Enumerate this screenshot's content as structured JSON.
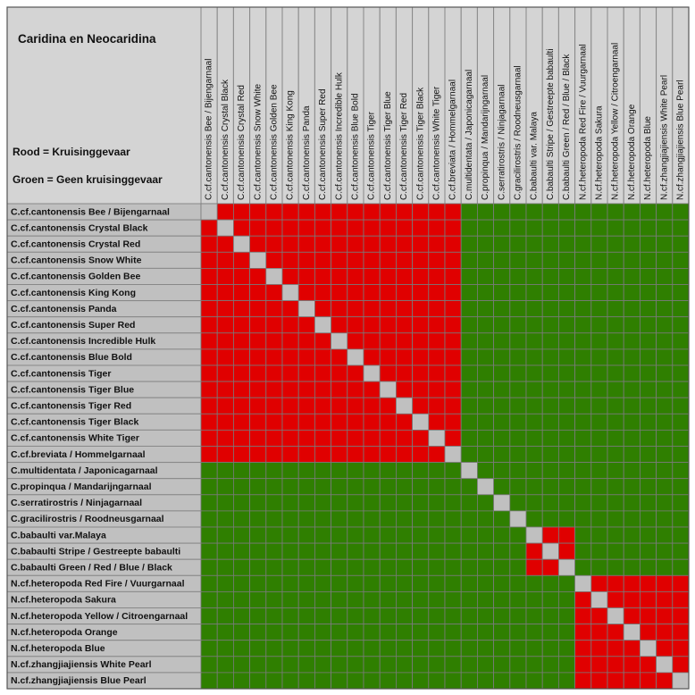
{
  "title": "Caridina en Neocaridina",
  "legend": [
    {
      "label": "Rood = Kruisinggevaar",
      "color": "#e00000"
    },
    {
      "label": "Groen = Geen kruisinggevaar",
      "color": "#2f7f00"
    }
  ],
  "self_color": "#c0c0c0",
  "columns": [
    "C.cf.cantonensis Bee / Bijengarnaal",
    "C.cf.cantonensis Crystal Black",
    "C.cf.cantonensis Crystal Red",
    "C.cf.cantonensis Snow White",
    "C.cf.cantonensis Golden Bee",
    "C.cf.cantonensis King Kong",
    "C.cf.cantonensis Panda",
    "C.cf.cantonensis Super Red",
    "C.cf.cantonensis Incredible Hulk",
    "C.cf.cantonensis Blue Bold",
    "C.cf.cantonensis Tiger",
    "C.cf.cantonensis Tiger Blue",
    "C.cf.cantonensis Tiger Red",
    "C.cf.cantonensis Tiger Black",
    "C.cf.cantonensis White Tiger",
    "C.cf.breviata / Hommelgarnaal",
    "C.multidentata / Japonicagarnaal",
    "C.propinqua / Mandarijngarnaal",
    "C.serratirostris / Ninjagarnaal",
    "C.gracilirostris / Roodneusgarnaal",
    "C.babaulti var. Malaya",
    "C.babaulti Stripe / Gestreepte babaulti",
    "C.babaulti Green / Red / Blue / Black",
    "N.cf.heteropoda Red Fire / Vuurgarnaal",
    "N.cf.heteropoda Sakura",
    "N.cf.heteropoda Yellow / Citroengarnaal",
    "N.cf.heteropoda Orange",
    "N.cf.heteropoda Blue",
    "N.cf.zhangjiajiensis White Pearl",
    "N.cf.zhangjiajiensis Blue Pearl"
  ],
  "rows": [
    "C.cf.cantonensis Bee / Bijengarnaal",
    "C.cf.cantonensis Crystal Black",
    "C.cf.cantonensis Crystal Red",
    "C.cf.cantonensis Snow White",
    "C.cf.cantonensis Golden Bee",
    "C.cf.cantonensis King Kong",
    "C.cf.cantonensis Panda",
    "C.cf.cantonensis Super Red",
    "C.cf.cantonensis Incredible Hulk",
    "C.cf.cantonensis Blue Bold",
    "C.cf.cantonensis Tiger",
    "C.cf.cantonensis Tiger  Blue",
    "C.cf.cantonensis Tiger Red",
    "C.cf.cantonensis Tiger Black",
    "C.cf.cantonensis White Tiger",
    "C.cf.breviata / Hommelgarnaal",
    "C.multidentata / Japonicagarnaal",
    "C.propinqua / Mandarijngarnaal",
    "C.serratirostris / Ninjagarnaal",
    "C.gracilirostris / Roodneusgarnaal",
    "C.babaulti var.Malaya",
    "C.babaulti Stripe / Gestreepte babaulti",
    "C.babaulti Green / Red / Blue / Black",
    "N.cf.heteropoda Red Fire / Vuurgarnaal",
    "N.cf.heteropoda Sakura",
    "N.cf.heteropoda Yellow / Citroengarnaal",
    "N.cf.heteropoda Orange",
    "N.cf.heteropoda Blue",
    "N.cf.zhangjiajiensis White Pearl",
    "N.cf.zhangjiajiensis Blue Pearl"
  ],
  "cross_groups": [
    [
      0,
      15
    ],
    [
      16,
      16
    ],
    [
      17,
      17
    ],
    [
      18,
      18
    ],
    [
      19,
      19
    ],
    [
      20,
      22
    ],
    [
      23,
      29
    ]
  ]
}
